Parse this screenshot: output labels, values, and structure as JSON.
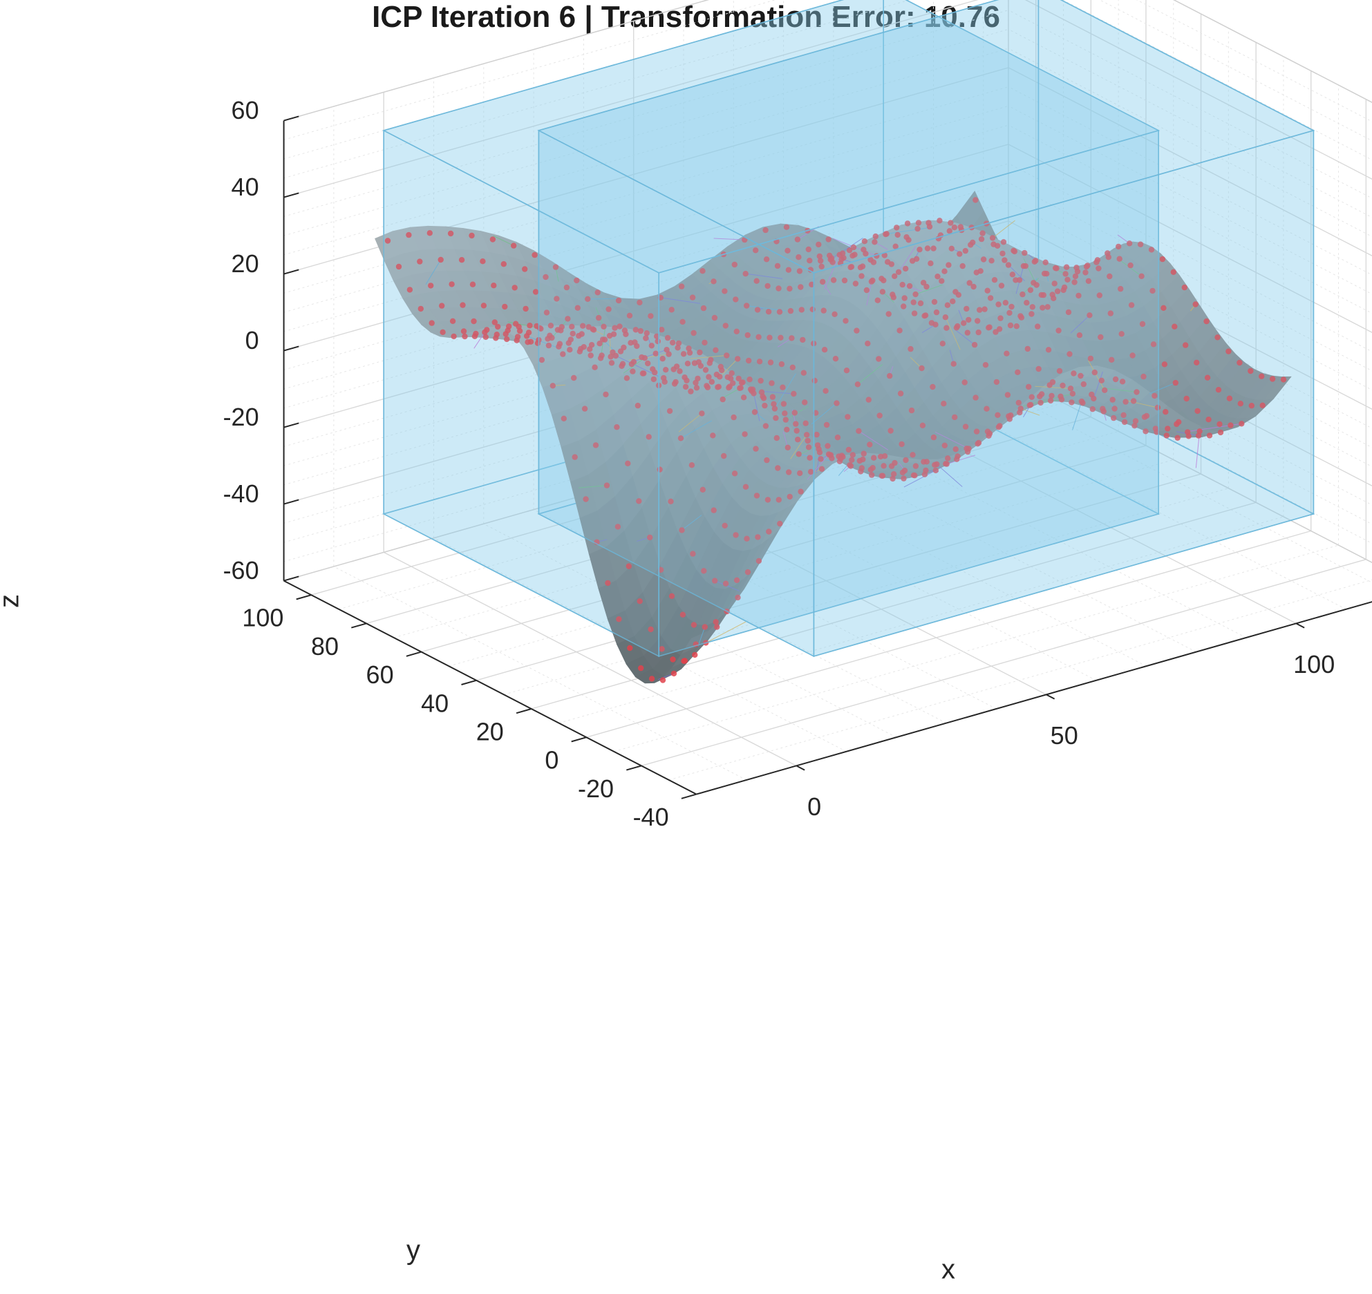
{
  "chart_data": {
    "type": "surface3d",
    "title": "ICP Iteration 6 | Transformation Error: 10.76",
    "xlabel": "x",
    "ylabel": "y",
    "zlabel": "z",
    "xlim": [
      -20,
      125
    ],
    "ylim": [
      -40,
      110
    ],
    "zlim": [
      -60,
      60
    ],
    "xticks": [
      0,
      50,
      100
    ],
    "yticks": [
      -40,
      -20,
      0,
      20,
      40,
      60,
      80,
      100
    ],
    "zticks": [
      -60,
      -40,
      -20,
      0,
      20,
      40,
      60
    ],
    "grid": true,
    "colors": {
      "surface_light": "#bcc5ca",
      "surface_dark": "#4f5a5e",
      "points": "#e0434c",
      "bounding_box": "#87ceeb",
      "bounding_box_edge": "#6ab7da",
      "grid": "#d9d9d9",
      "axis": "#262626"
    },
    "series": [
      {
        "name": "",
        "kind": "surface"
      },
      {
        "name": "",
        "kind": "scatter"
      },
      {
        "name": "",
        "kind": "correspondence-lines"
      },
      {
        "name": "",
        "kind": "bounding-box"
      },
      {
        "name": "",
        "kind": "bounding-box"
      }
    ],
    "bounding_boxes": [
      {
        "x": [
          0,
          100
        ],
        "y": [
          10,
          110
        ],
        "z": [
          -50,
          50
        ]
      },
      {
        "x": [
          20,
          120
        ],
        "y": [
          -10,
          90
        ],
        "z": [
          -50,
          50
        ]
      }
    ]
  }
}
